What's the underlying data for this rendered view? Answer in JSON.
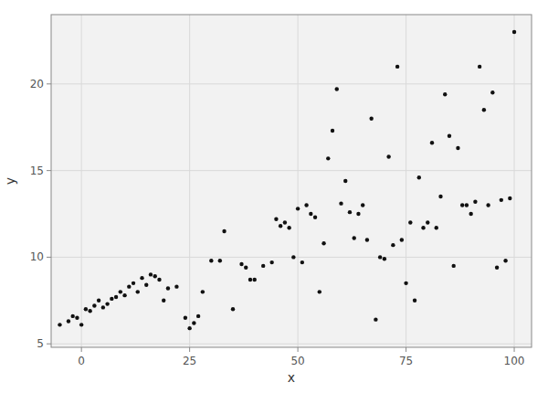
{
  "chart_data": {
    "type": "scatter",
    "x": [
      -5,
      -3,
      -2,
      -1,
      0,
      1,
      2,
      3,
      4,
      5,
      6,
      7,
      8,
      9,
      10,
      11,
      12,
      13,
      14,
      15,
      16,
      17,
      18,
      19,
      20,
      22,
      24,
      25,
      26,
      27,
      28,
      30,
      32,
      33,
      35,
      37,
      38,
      39,
      40,
      42,
      44,
      45,
      46,
      47,
      48,
      49,
      50,
      51,
      52,
      53,
      54,
      55,
      56,
      57,
      58,
      59,
      60,
      61,
      62,
      63,
      64,
      65,
      66,
      67,
      68,
      69,
      70,
      71,
      72,
      73,
      74,
      75,
      76,
      77,
      78,
      79,
      80,
      81,
      82,
      83,
      84,
      85,
      86,
      87,
      88,
      89,
      90,
      91,
      92,
      93,
      94,
      95,
      96,
      97,
      98,
      99,
      100
    ],
    "values": [
      6.1,
      6.3,
      6.6,
      6.5,
      6.1,
      7.0,
      6.9,
      7.2,
      7.5,
      7.1,
      7.3,
      7.6,
      7.7,
      8.0,
      7.8,
      8.3,
      8.5,
      8.0,
      8.8,
      8.4,
      9.0,
      8.9,
      8.7,
      7.5,
      8.2,
      8.3,
      6.5,
      5.9,
      6.2,
      6.6,
      8.0,
      9.8,
      9.8,
      11.5,
      7.0,
      9.6,
      9.4,
      8.7,
      8.7,
      9.5,
      9.7,
      12.2,
      11.8,
      12.0,
      11.7,
      10.0,
      12.8,
      9.7,
      13.0,
      12.5,
      12.3,
      8.0,
      10.8,
      15.7,
      17.3,
      19.7,
      13.1,
      14.4,
      12.6,
      11.1,
      12.5,
      13.0,
      11.0,
      18.0,
      6.4,
      10.0,
      9.9,
      15.8,
      10.7,
      21.0,
      11.0,
      8.5,
      12.0,
      7.5,
      14.6,
      11.7,
      12.0,
      16.6,
      11.7,
      13.5,
      19.4,
      17.0,
      9.5,
      16.3,
      13.0,
      13.0,
      12.5,
      13.2,
      21.0,
      18.5,
      13.0,
      19.5,
      9.4,
      13.3,
      9.8,
      13.4,
      23.0
    ],
    "xlabel": "x",
    "ylabel": "y",
    "xlim": [
      -7,
      104
    ],
    "ylim": [
      4.8,
      24.0
    ],
    "xticks": [
      0,
      25,
      50,
      75,
      100
    ],
    "yticks": [
      5,
      10,
      15,
      20
    ],
    "color": "#111111",
    "grid": true
  }
}
